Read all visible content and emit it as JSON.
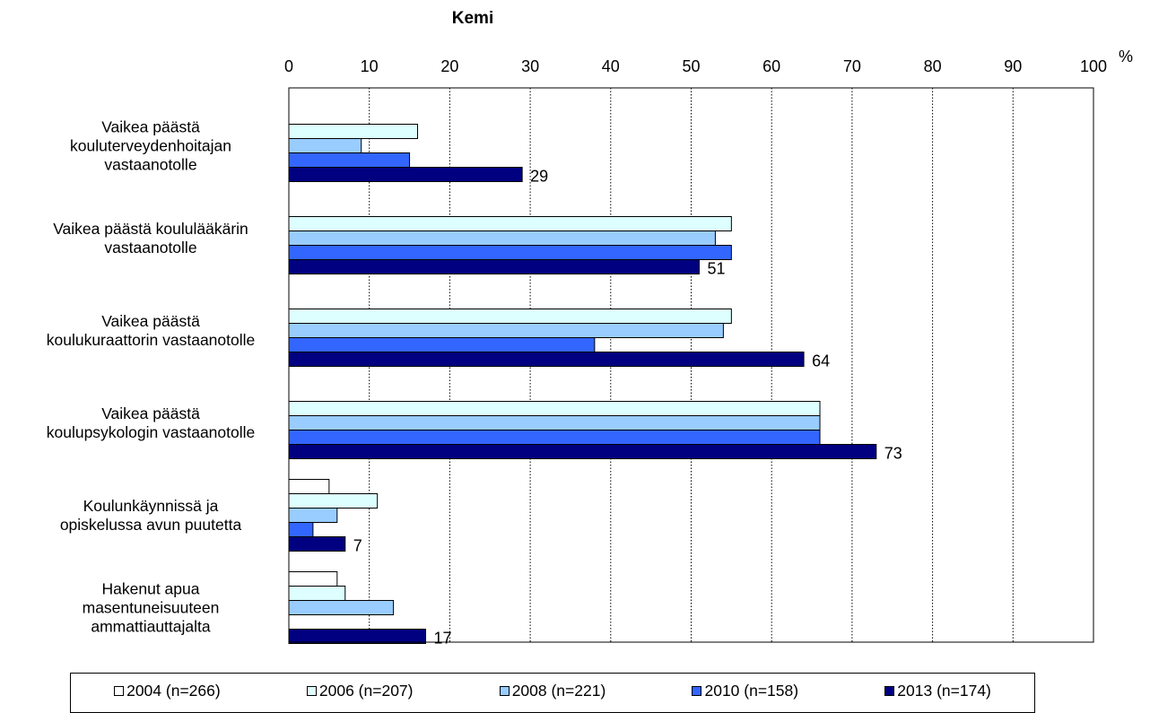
{
  "chart_data": {
    "type": "bar",
    "orientation": "horizontal",
    "title": "Kemi",
    "unit": "%",
    "xlim": [
      0,
      100
    ],
    "ticks": [
      "0",
      "10",
      "20",
      "30",
      "40",
      "50",
      "60",
      "70",
      "80",
      "90",
      "100"
    ],
    "grid": "vertical dotted",
    "legend_position": "bottom",
    "categories": [
      [
        "Vaikea päästä",
        "kouluterveydenhoitajan",
        "vastaanotolle"
      ],
      [
        "Vaikea päästä koululääkärin",
        "vastaanotolle"
      ],
      [
        "Vaikea päästä",
        "koulukuraattorin vastaanotolle"
      ],
      [
        "Vaikea päästä",
        "koulupsykologin vastaanotolle"
      ],
      [
        "Koulunkäynnissä ja",
        "opiskelussa avun puutetta"
      ],
      [
        "Hakenut apua",
        "masentuneisuuteen",
        "ammattiauttajalta"
      ]
    ],
    "series": [
      {
        "name": "2004 (n=266)",
        "color": "#ffffff",
        "values": [
          null,
          null,
          null,
          null,
          5,
          6
        ]
      },
      {
        "name": "2006 (n=207)",
        "color": "#ddffff",
        "values": [
          16,
          55,
          55,
          66,
          11,
          7
        ]
      },
      {
        "name": "2008 (n=221)",
        "color": "#99ccff",
        "values": [
          9,
          53,
          54,
          66,
          6,
          13
        ]
      },
      {
        "name": "2010 (n=158)",
        "color": "#3366ff",
        "values": [
          15,
          55,
          38,
          66,
          3,
          null
        ]
      },
      {
        "name": "2013 (n=174)",
        "color": "#000080",
        "values": [
          29,
          51,
          64,
          73,
          7,
          17
        ]
      }
    ],
    "data_labels": [
      "29",
      "51",
      "64",
      "73",
      "7",
      "17"
    ]
  }
}
